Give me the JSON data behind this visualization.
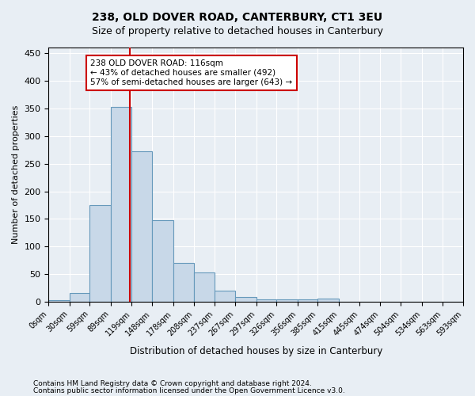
{
  "title": "238, OLD DOVER ROAD, CANTERBURY, CT1 3EU",
  "subtitle": "Size of property relative to detached houses in Canterbury",
  "xlabel": "Distribution of detached houses by size in Canterbury",
  "ylabel": "Number of detached properties",
  "bar_color": "#c8d8e8",
  "bar_edge_color": "#6699bb",
  "vline_x": 116,
  "vline_color": "#cc0000",
  "annotation_title": "238 OLD DOVER ROAD: 116sqm",
  "annotation_line1": "← 43% of detached houses are smaller (492)",
  "annotation_line2": "57% of semi-detached houses are larger (643) →",
  "annotation_box_color": "#ffffff",
  "annotation_box_edge": "#cc0000",
  "bin_edges": [
    0,
    30,
    59,
    89,
    119,
    148,
    178,
    208,
    237,
    267,
    297,
    326,
    356,
    385,
    415,
    445,
    474,
    504,
    534,
    563,
    593
  ],
  "bar_heights": [
    3,
    16,
    175,
    352,
    272,
    148,
    70,
    53,
    20,
    9,
    5,
    5,
    5,
    6,
    0,
    0,
    0,
    1,
    0,
    1
  ],
  "ylim": [
    0,
    460
  ],
  "yticks": [
    0,
    50,
    100,
    150,
    200,
    250,
    300,
    350,
    400,
    450
  ],
  "footnote1": "Contains HM Land Registry data © Crown copyright and database right 2024.",
  "footnote2": "Contains public sector information licensed under the Open Government Licence v3.0.",
  "bg_color": "#e8eef4",
  "plot_bg_color": "#e8eef4"
}
